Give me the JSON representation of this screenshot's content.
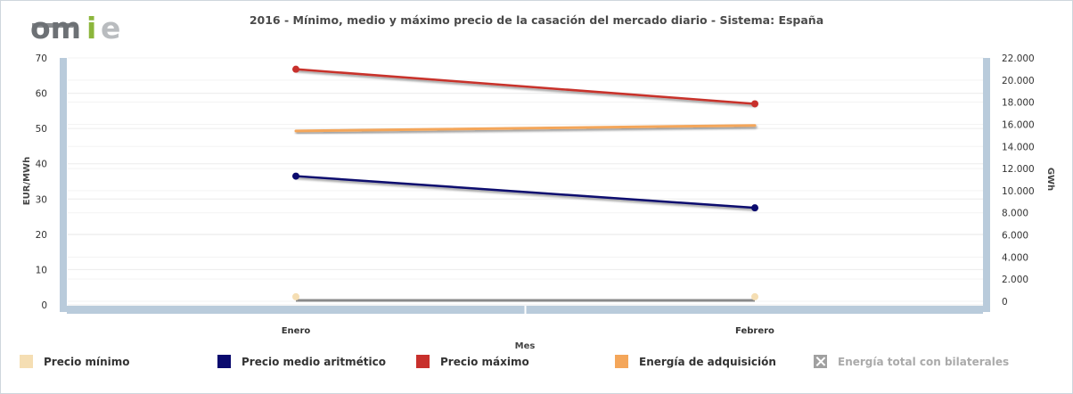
{
  "logo": {
    "text_om": "om",
    "text_i": "i",
    "text_e": "e"
  },
  "chart_data": {
    "type": "line",
    "title": "2016 - Mínimo, medio y máximo precio de la casación del mercado diario - Sistema: España",
    "xlabel": "Mes",
    "ylabel_left": "EUR/MWh",
    "ylabel_right": "GWh",
    "categories": [
      "Enero",
      "Febrero"
    ],
    "ylim_left": [
      0,
      70
    ],
    "ylim_right": [
      0,
      22000
    ],
    "yticks_left": [
      "0",
      "10",
      "20",
      "30",
      "40",
      "50",
      "60",
      "70"
    ],
    "yticks_right": [
      "0",
      "2.000",
      "4.000",
      "6.000",
      "8.000",
      "10.000",
      "12.000",
      "14.000",
      "16.000",
      "18.000",
      "20.000",
      "22.000"
    ],
    "grid": true,
    "legend_position": "bottom",
    "series": [
      {
        "name": "Precio mínimo",
        "axis": "left",
        "values": [
          2.3,
          2.3
        ],
        "color": "#f5deb3",
        "visible": true
      },
      {
        "name": "Precio medio aritmético",
        "axis": "left",
        "values": [
          36.5,
          27.5
        ],
        "color": "#0a0a6e",
        "visible": true
      },
      {
        "name": "Precio máximo",
        "axis": "left",
        "values": [
          66.8,
          57.0
        ],
        "color": "#c8302c",
        "visible": true
      },
      {
        "name": "Energía de adquisición",
        "axis": "right",
        "values": [
          15400,
          15900
        ],
        "color": "#f4a65a",
        "visible": true
      },
      {
        "name": "Energía total con bilaterales",
        "axis": "right",
        "values": [
          0,
          0
        ],
        "color": "#a0a0a0",
        "visible": false
      }
    ]
  }
}
